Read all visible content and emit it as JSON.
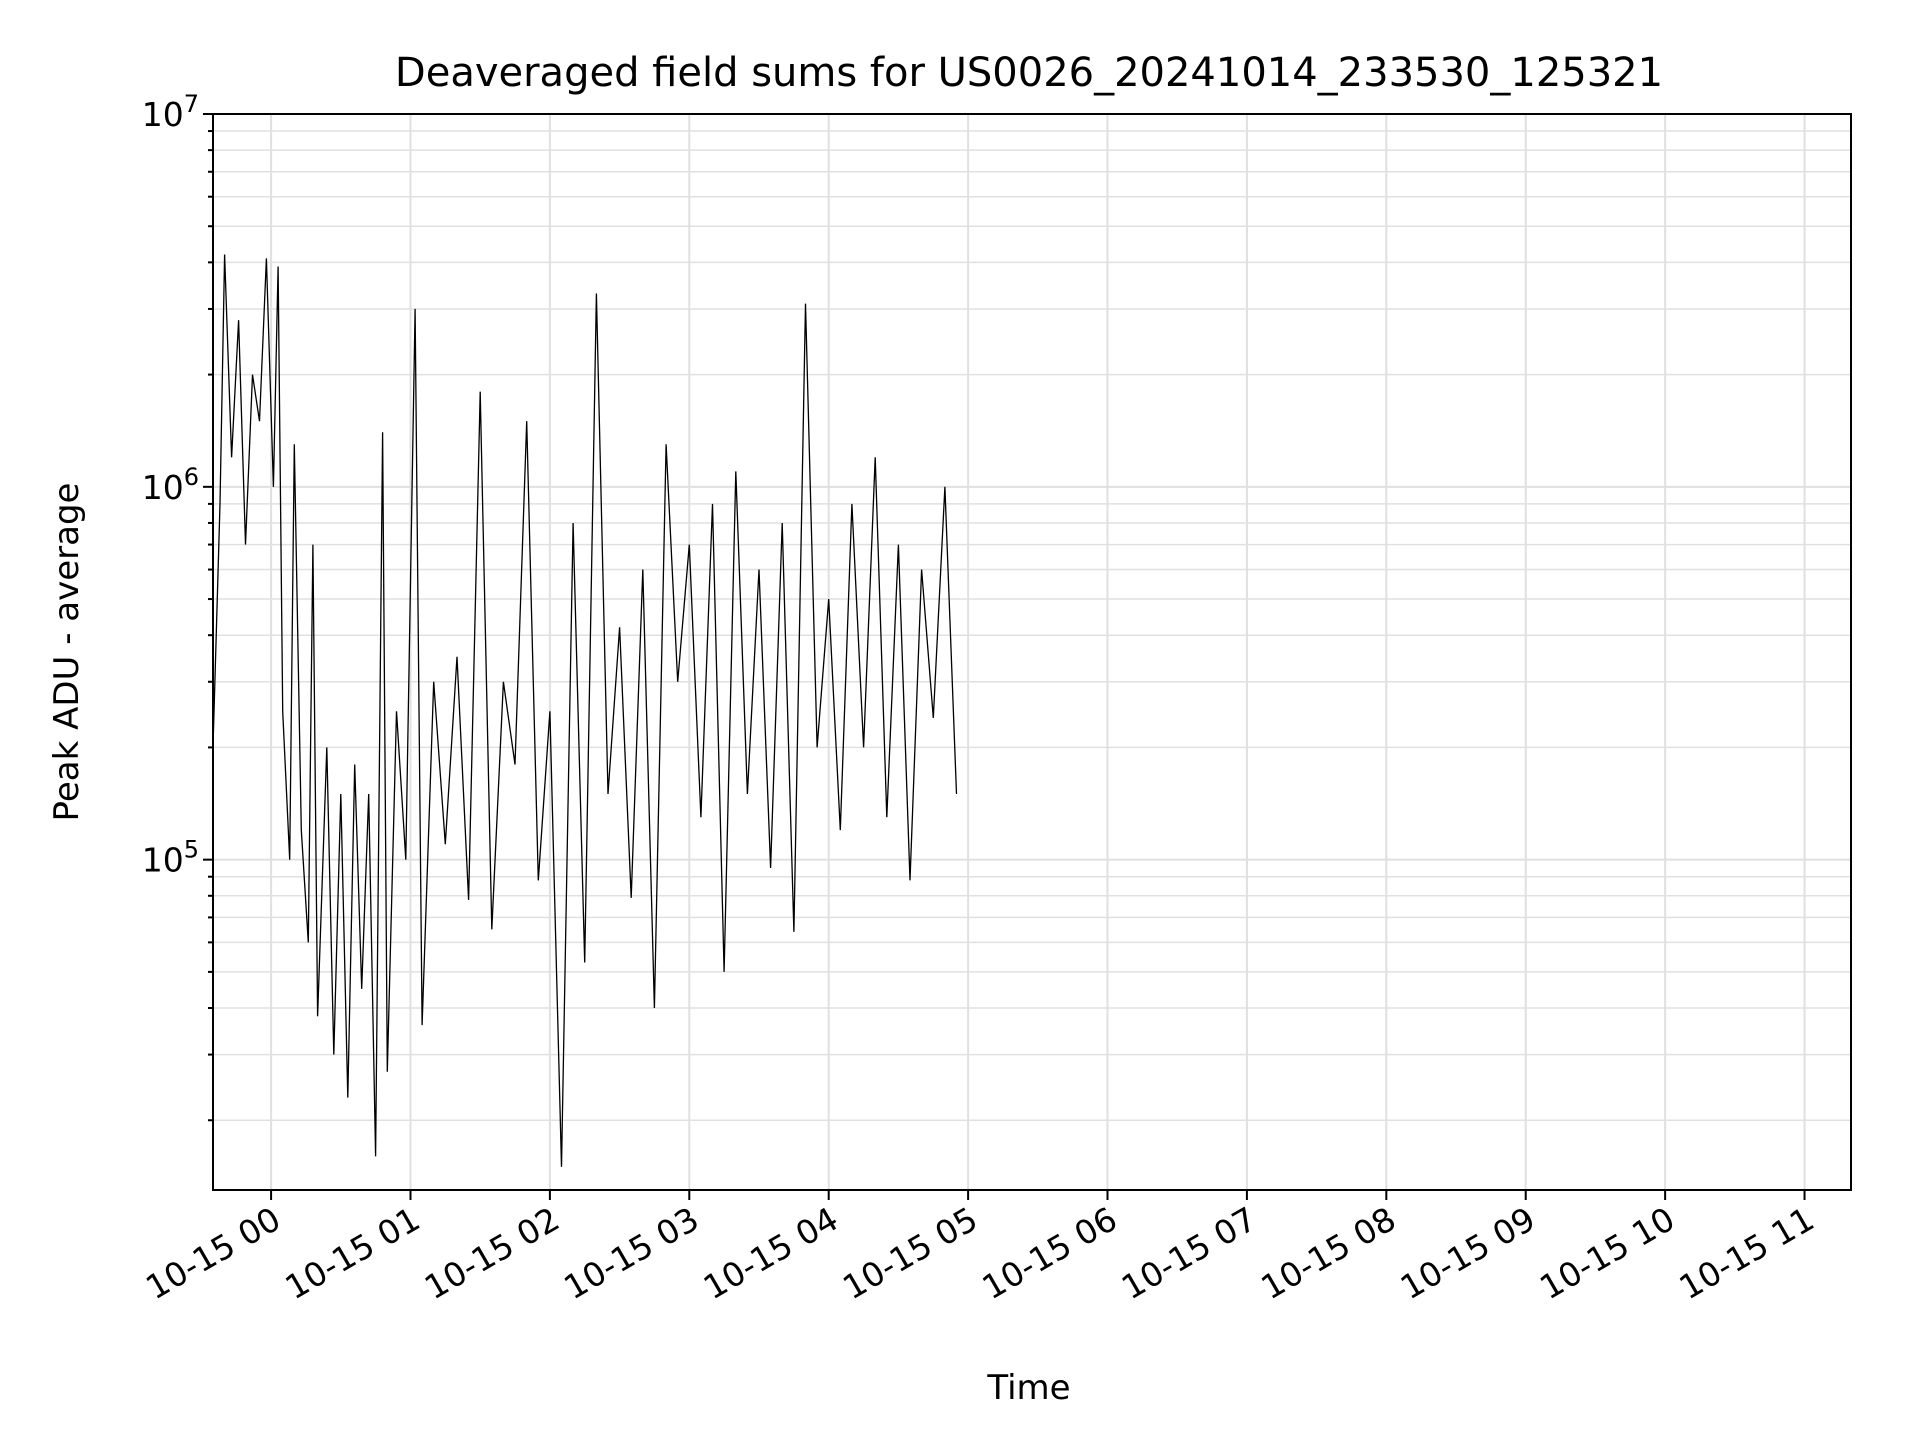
{
  "chart_data": {
    "type": "line",
    "title": "Deaveraged field sums for US0026_20241014_233530_125321",
    "xlabel": "Time",
    "ylabel": "Peak ADU - average",
    "yscale": "log",
    "ylim": [
      13000,
      10000000
    ],
    "xlim": [
      "2024-10-14 23:35",
      "2024-10-15 11:20"
    ],
    "grid": true,
    "legend": "none",
    "x_ticks": [
      {
        "t": "2024-10-15 00:00",
        "label": "10-15 00"
      },
      {
        "t": "2024-10-15 01:00",
        "label": "10-15 01"
      },
      {
        "t": "2024-10-15 02:00",
        "label": "10-15 02"
      },
      {
        "t": "2024-10-15 03:00",
        "label": "10-15 03"
      },
      {
        "t": "2024-10-15 04:00",
        "label": "10-15 04"
      },
      {
        "t": "2024-10-15 05:00",
        "label": "10-15 05"
      },
      {
        "t": "2024-10-15 06:00",
        "label": "10-15 06"
      },
      {
        "t": "2024-10-15 07:00",
        "label": "10-15 07"
      },
      {
        "t": "2024-10-15 08:00",
        "label": "10-15 08"
      },
      {
        "t": "2024-10-15 09:00",
        "label": "10-15 09"
      },
      {
        "t": "2024-10-15 10:00",
        "label": "10-15 10"
      },
      {
        "t": "2024-10-15 11:00",
        "label": "10-15 11"
      }
    ],
    "y_ticks": [
      {
        "value": 100000,
        "base": "10",
        "exp": "5"
      },
      {
        "value": 1000000,
        "base": "10",
        "exp": "6"
      },
      {
        "value": 10000000,
        "base": "10",
        "exp": "7"
      }
    ],
    "series": [
      {
        "color": "#000000",
        "points": [
          [
            "2024-10-14 23:35",
            200000
          ],
          [
            "2024-10-14 23:38",
            900000
          ],
          [
            "2024-10-14 23:40",
            4200000
          ],
          [
            "2024-10-14 23:43",
            1200000
          ],
          [
            "2024-10-14 23:46",
            2800000
          ],
          [
            "2024-10-14 23:49",
            700000
          ],
          [
            "2024-10-14 23:52",
            2000000
          ],
          [
            "2024-10-14 23:55",
            1500000
          ],
          [
            "2024-10-14 23:58",
            4100000
          ],
          [
            "2024-10-15 00:01",
            1000000
          ],
          [
            "2024-10-15 00:03",
            3900000
          ],
          [
            "2024-10-15 00:05",
            250000
          ],
          [
            "2024-10-15 00:08",
            100000
          ],
          [
            "2024-10-15 00:10",
            1300000
          ],
          [
            "2024-10-15 00:13",
            120000
          ],
          [
            "2024-10-15 00:16",
            60000
          ],
          [
            "2024-10-15 00:18",
            700000
          ],
          [
            "2024-10-15 00:20",
            38000
          ],
          [
            "2024-10-15 00:24",
            200000
          ],
          [
            "2024-10-15 00:27",
            30000
          ],
          [
            "2024-10-15 00:30",
            150000
          ],
          [
            "2024-10-15 00:33",
            23000
          ],
          [
            "2024-10-15 00:36",
            180000
          ],
          [
            "2024-10-15 00:39",
            45000
          ],
          [
            "2024-10-15 00:42",
            150000
          ],
          [
            "2024-10-15 00:45",
            16000
          ],
          [
            "2024-10-15 00:48",
            1400000
          ],
          [
            "2024-10-15 00:50",
            27000
          ],
          [
            "2024-10-15 00:54",
            250000
          ],
          [
            "2024-10-15 00:58",
            100000
          ],
          [
            "2024-10-15 01:02",
            3000000
          ],
          [
            "2024-10-15 01:05",
            36000
          ],
          [
            "2024-10-15 01:10",
            300000
          ],
          [
            "2024-10-15 01:15",
            110000
          ],
          [
            "2024-10-15 01:20",
            350000
          ],
          [
            "2024-10-15 01:25",
            78000
          ],
          [
            "2024-10-15 01:30",
            1800000
          ],
          [
            "2024-10-15 01:35",
            65000
          ],
          [
            "2024-10-15 01:40",
            300000
          ],
          [
            "2024-10-15 01:45",
            180000
          ],
          [
            "2024-10-15 01:50",
            1500000
          ],
          [
            "2024-10-15 01:55",
            88000
          ],
          [
            "2024-10-15 02:00",
            250000
          ],
          [
            "2024-10-15 02:05",
            15000
          ],
          [
            "2024-10-15 02:10",
            800000
          ],
          [
            "2024-10-15 02:15",
            53000
          ],
          [
            "2024-10-15 02:20",
            3300000
          ],
          [
            "2024-10-15 02:25",
            150000
          ],
          [
            "2024-10-15 02:30",
            420000
          ],
          [
            "2024-10-15 02:35",
            79000
          ],
          [
            "2024-10-15 02:40",
            600000
          ],
          [
            "2024-10-15 02:45",
            40000
          ],
          [
            "2024-10-15 02:50",
            1300000
          ],
          [
            "2024-10-15 02:55",
            300000
          ],
          [
            "2024-10-15 03:00",
            700000
          ],
          [
            "2024-10-15 03:05",
            130000
          ],
          [
            "2024-10-15 03:10",
            900000
          ],
          [
            "2024-10-15 03:15",
            50000
          ],
          [
            "2024-10-15 03:20",
            1100000
          ],
          [
            "2024-10-15 03:25",
            150000
          ],
          [
            "2024-10-15 03:30",
            600000
          ],
          [
            "2024-10-15 03:35",
            95000
          ],
          [
            "2024-10-15 03:40",
            800000
          ],
          [
            "2024-10-15 03:45",
            64000
          ],
          [
            "2024-10-15 03:50",
            3100000
          ],
          [
            "2024-10-15 03:55",
            200000
          ],
          [
            "2024-10-15 04:00",
            500000
          ],
          [
            "2024-10-15 04:05",
            120000
          ],
          [
            "2024-10-15 04:10",
            900000
          ],
          [
            "2024-10-15 04:15",
            200000
          ],
          [
            "2024-10-15 04:20",
            1200000
          ],
          [
            "2024-10-15 04:25",
            130000
          ],
          [
            "2024-10-15 04:30",
            700000
          ],
          [
            "2024-10-15 04:35",
            88000
          ],
          [
            "2024-10-15 04:40",
            600000
          ],
          [
            "2024-10-15 04:45",
            240000
          ],
          [
            "2024-10-15 04:50",
            1000000
          ],
          [
            "2024-10-15 04:55",
            150000
          ]
        ]
      }
    ]
  }
}
